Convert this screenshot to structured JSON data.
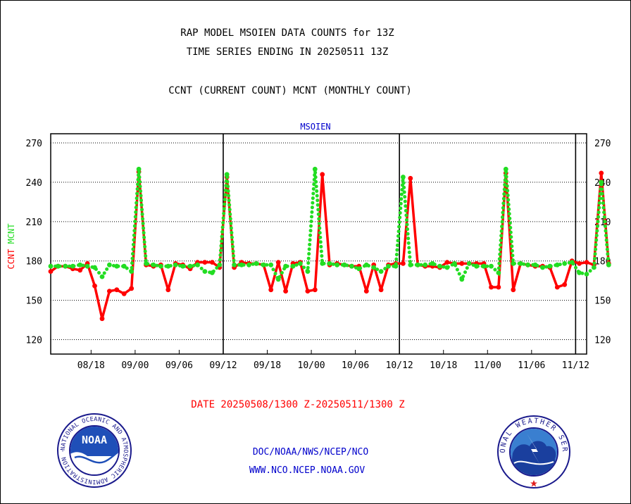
{
  "chart_data": {
    "type": "line",
    "title": "RAP MODEL MSOIEN DATA COUNTS for 13Z",
    "subtitle": "TIME SERIES ENDING IN 20250511 13Z",
    "description": "CCNT (CURRENT COUNT) MCNT (MONTHLY COUNT)",
    "panel_label": "MSOIEN",
    "ylabel_left": "CCNT",
    "ylabel_right": "MCNT",
    "date_range": "DATE 20250508/1300 Z-20250511/1300 Z",
    "ylim": [
      109,
      277
    ],
    "yticks": [
      120,
      150,
      180,
      210,
      240,
      270
    ],
    "xlim": [
      0,
      73
    ],
    "xticks": [
      {
        "pos": 5.5,
        "label": "08/18"
      },
      {
        "pos": 11.5,
        "label": "09/00"
      },
      {
        "pos": 17.5,
        "label": "09/06"
      },
      {
        "pos": 23.5,
        "label": "09/12"
      },
      {
        "pos": 29.5,
        "label": "09/18"
      },
      {
        "pos": 35.5,
        "label": "10/00"
      },
      {
        "pos": 41.5,
        "label": "10/06"
      },
      {
        "pos": 47.5,
        "label": "10/12"
      },
      {
        "pos": 53.5,
        "label": "10/18"
      },
      {
        "pos": 59.5,
        "label": "11/00"
      },
      {
        "pos": 65.5,
        "label": "11/06"
      },
      {
        "pos": 71.5,
        "label": "11/12"
      }
    ],
    "day_boundaries": [
      23.5,
      47.5,
      71.5
    ],
    "grid": true,
    "series": [
      {
        "name": "CCNT",
        "color": "#ff0000",
        "style": "solid",
        "values": [
          172,
          176,
          176,
          174,
          173,
          178,
          161,
          136,
          157,
          158,
          155,
          159,
          248,
          177,
          176,
          177,
          158,
          178,
          177,
          174,
          179,
          179,
          179,
          175,
          244,
          175,
          179,
          178,
          178,
          177,
          158,
          179,
          157,
          178,
          179,
          157,
          158,
          246,
          177,
          178,
          177,
          176,
          176,
          157,
          177,
          158,
          177,
          178,
          178,
          243,
          177,
          176,
          176,
          175,
          179,
          178,
          178,
          178,
          178,
          178,
          160,
          160,
          247,
          158,
          178,
          177,
          176,
          176,
          175,
          160,
          162,
          180,
          178,
          179,
          177,
          247,
          178
        ]
      },
      {
        "name": "MCNT",
        "color": "#22dd22",
        "style": "dotted",
        "values": [
          176,
          176,
          176,
          176,
          177,
          176,
          175,
          168,
          177,
          176,
          176,
          172,
          250,
          178,
          177,
          176,
          176,
          177,
          176,
          176,
          177,
          172,
          171,
          177,
          246,
          177,
          177,
          177,
          178,
          177,
          177,
          166,
          176,
          176,
          178,
          172,
          250,
          178,
          178,
          177,
          177,
          176,
          174,
          177,
          175,
          172,
          176,
          176,
          244,
          177,
          177,
          177,
          178,
          176,
          175,
          178,
          166,
          178,
          176,
          176,
          176,
          171,
          250,
          178,
          178,
          177,
          177,
          175,
          176,
          177,
          178,
          179,
          171,
          170,
          175,
          240,
          177
        ]
      }
    ]
  },
  "footer": {
    "line1": "DOC/NOAA/NWS/NCEP/NCO",
    "line2": "WWW.NCO.NCEP.NOAA.GOV"
  },
  "logos": {
    "left": {
      "name": "noaa-logo",
      "text": "NOAA",
      "ring_text": "NATIONAL OCEANIC AND ATMOSPHERIC ADMINISTRATION · U.S. DEPARTMENT OF COMMERCE ·"
    },
    "right": {
      "name": "nws-logo",
      "ring_text": "NATIONAL WEATHER SERVICE"
    }
  },
  "colors": {
    "title": "#000000",
    "date": "#ff0000",
    "footer": "#0000cc",
    "panel_label": "#0000cc",
    "ccnt": "#ff0000",
    "mcnt": "#22dd22"
  }
}
